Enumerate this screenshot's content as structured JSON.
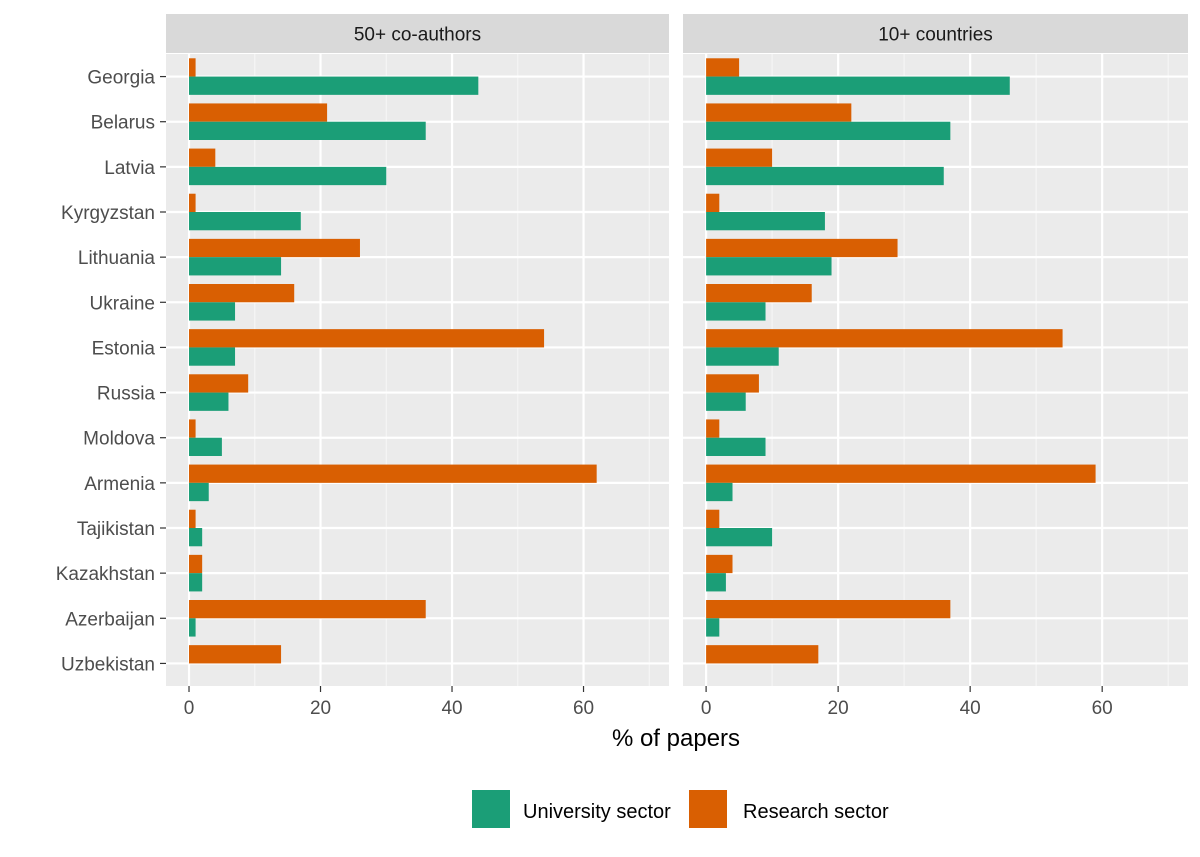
{
  "chart_data": {
    "type": "bar",
    "orientation": "horizontal",
    "xlabel": "% of papers",
    "xlim": [
      -3.5,
      73
    ],
    "xticks": [
      0,
      20,
      40,
      60
    ],
    "grid": true,
    "legend_position": "bottom",
    "categories": [
      "Georgia",
      "Belarus",
      "Latvia",
      "Kyrgyzstan",
      "Lithuania",
      "Ukraine",
      "Estonia",
      "Russia",
      "Moldova",
      "Armenia",
      "Tajikistan",
      "Kazakhstan",
      "Azerbaijan",
      "Uzbekistan"
    ],
    "series_meta": [
      {
        "name": "University sector",
        "color": "#1b9e77"
      },
      {
        "name": "Research sector",
        "color": "#d95f02"
      }
    ],
    "panels": [
      {
        "title": "50+ co-authors",
        "series": [
          {
            "name": "University sector",
            "values": [
              44,
              36,
              30,
              17,
              14,
              7,
              7,
              6,
              5,
              3,
              2,
              2,
              1,
              0
            ]
          },
          {
            "name": "Research sector",
            "values": [
              1,
              21,
              4,
              1,
              26,
              16,
              54,
              9,
              1,
              62,
              1,
              2,
              36,
              14
            ]
          }
        ]
      },
      {
        "title": "10+ countries",
        "series": [
          {
            "name": "University sector",
            "values": [
              46,
              37,
              36,
              18,
              19,
              9,
              11,
              6,
              9,
              4,
              10,
              3,
              2,
              0
            ]
          },
          {
            "name": "Research sector",
            "values": [
              5,
              22,
              10,
              2,
              29,
              16,
              54,
              8,
              2,
              59,
              2,
              4,
              37,
              17
            ]
          }
        ]
      }
    ]
  }
}
